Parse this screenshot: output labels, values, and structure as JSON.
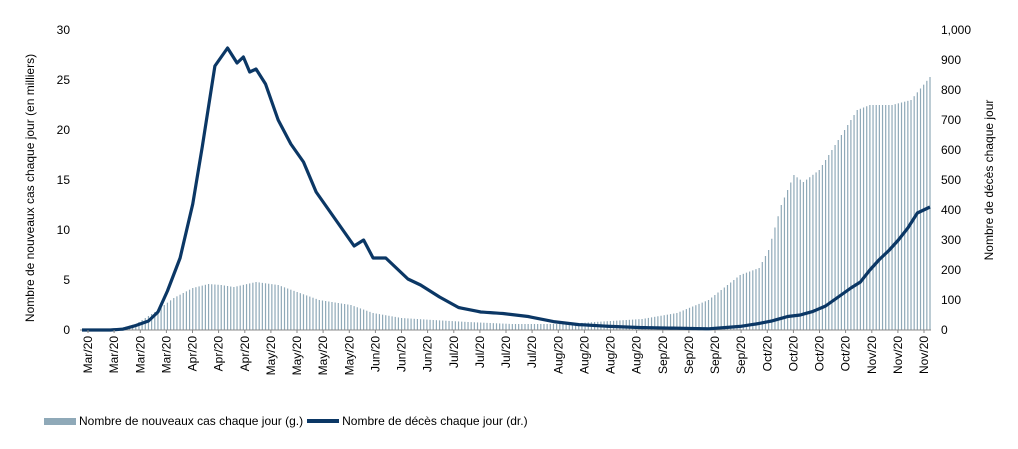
{
  "colors": {
    "bars": "#8fa9b8",
    "line": "#0b3765",
    "axis": "#888888"
  },
  "chart_data": {
    "type": "bar+line",
    "title": "",
    "ylabel_left": "Nombre de nouveaux cas chaque jour (en milliers)",
    "ylabel_right": "Nombre de décès chaque jour",
    "ylim_left": [
      0,
      30
    ],
    "ylim_right": [
      0,
      1000
    ],
    "yticks_left": [
      "0",
      "5",
      "10",
      "15",
      "20",
      "25",
      "30"
    ],
    "yticks_right": [
      "0",
      "100",
      "200",
      "300",
      "400",
      "500",
      "600",
      "700",
      "800",
      "900",
      "1,000"
    ],
    "x_tick_labels": [
      "Mar/20",
      "Mar/20",
      "Mar/20",
      "Mar/20",
      "Apr/20",
      "Apr/20",
      "Apr/20",
      "May/20",
      "May/20",
      "May/20",
      "May/20",
      "Jun/20",
      "Jun/20",
      "Jun/20",
      "Jul/20",
      "Jul/20",
      "Jul/20",
      "Jul/20",
      "Aug/20",
      "Aug/20",
      "Aug/20",
      "Aug/20",
      "Sep/20",
      "Sep/20",
      "Sep/20",
      "Sep/20",
      "Oct/20",
      "Oct/20",
      "Oct/20",
      "Oct/20",
      "Nov/20",
      "Nov/20",
      "Nov/20"
    ],
    "legend": [
      {
        "label": "Nombre de nouveaux cas chaque jour (g.)",
        "kind": "bar"
      },
      {
        "label": "Nombre de décès chaque jour (dr.)",
        "kind": "line"
      }
    ],
    "legend_position": "bottom-left",
    "x_start": "2020-03-01",
    "x_end": "2020-11-24",
    "series": [
      {
        "name": "Nombre de nouveaux cas chaque jour (g.)",
        "kind": "bar",
        "axis": "left",
        "knots": [
          [
            "2020-03-01",
            0
          ],
          [
            "2020-03-12",
            0.1
          ],
          [
            "2020-03-18",
            0.6
          ],
          [
            "2020-03-24",
            1.8
          ],
          [
            "2020-03-30",
            3.2
          ],
          [
            "2020-04-05",
            4.2
          ],
          [
            "2020-04-10",
            4.6
          ],
          [
            "2020-04-14",
            4.5
          ],
          [
            "2020-04-18",
            4.3
          ],
          [
            "2020-04-25",
            4.8
          ],
          [
            "2020-05-02",
            4.5
          ],
          [
            "2020-05-08",
            3.8
          ],
          [
            "2020-05-15",
            3.0
          ],
          [
            "2020-05-25",
            2.5
          ],
          [
            "2020-06-01",
            1.7
          ],
          [
            "2020-06-10",
            1.2
          ],
          [
            "2020-06-20",
            1.0
          ],
          [
            "2020-07-01",
            0.8
          ],
          [
            "2020-07-15",
            0.6
          ],
          [
            "2020-08-01",
            0.6
          ],
          [
            "2020-08-10",
            0.8
          ],
          [
            "2020-08-25",
            1.1
          ],
          [
            "2020-09-05",
            1.7
          ],
          [
            "2020-09-15",
            3.0
          ],
          [
            "2020-09-25",
            5.5
          ],
          [
            "2020-10-01",
            6.2
          ],
          [
            "2020-10-04",
            8.0
          ],
          [
            "2020-10-08",
            12.5
          ],
          [
            "2020-10-12",
            15.5
          ],
          [
            "2020-10-15",
            14.8
          ],
          [
            "2020-10-20",
            16.0
          ],
          [
            "2020-10-25",
            18.5
          ],
          [
            "2020-11-01",
            22.0
          ],
          [
            "2020-11-05",
            22.5
          ],
          [
            "2020-11-12",
            22.5
          ],
          [
            "2020-11-18",
            23.0
          ],
          [
            "2020-11-24",
            25.3
          ]
        ]
      },
      {
        "name": "Nombre de décès chaque jour (dr.)",
        "kind": "line",
        "axis": "right",
        "knots": [
          [
            "2020-03-01",
            0
          ],
          [
            "2020-03-10",
            0
          ],
          [
            "2020-03-14",
            3
          ],
          [
            "2020-03-18",
            15
          ],
          [
            "2020-03-22",
            30
          ],
          [
            "2020-03-25",
            60
          ],
          [
            "2020-03-28",
            130
          ],
          [
            "2020-04-01",
            240
          ],
          [
            "2020-04-05",
            420
          ],
          [
            "2020-04-08",
            610
          ],
          [
            "2020-04-12",
            880
          ],
          [
            "2020-04-16",
            940
          ],
          [
            "2020-04-19",
            890
          ],
          [
            "2020-04-21",
            910
          ],
          [
            "2020-04-23",
            860
          ],
          [
            "2020-04-25",
            870
          ],
          [
            "2020-04-28",
            820
          ],
          [
            "2020-05-02",
            700
          ],
          [
            "2020-05-06",
            620
          ],
          [
            "2020-05-10",
            560
          ],
          [
            "2020-05-14",
            460
          ],
          [
            "2020-05-18",
            400
          ],
          [
            "2020-05-22",
            340
          ],
          [
            "2020-05-26",
            280
          ],
          [
            "2020-05-29",
            300
          ],
          [
            "2020-06-01",
            240
          ],
          [
            "2020-06-05",
            240
          ],
          [
            "2020-06-08",
            210
          ],
          [
            "2020-06-12",
            170
          ],
          [
            "2020-06-16",
            150
          ],
          [
            "2020-06-22",
            110
          ],
          [
            "2020-06-28",
            75
          ],
          [
            "2020-07-05",
            60
          ],
          [
            "2020-07-12",
            55
          ],
          [
            "2020-07-20",
            45
          ],
          [
            "2020-07-28",
            28
          ],
          [
            "2020-08-05",
            18
          ],
          [
            "2020-08-15",
            12
          ],
          [
            "2020-08-25",
            8
          ],
          [
            "2020-09-05",
            6
          ],
          [
            "2020-09-15",
            4
          ],
          [
            "2020-09-20",
            8
          ],
          [
            "2020-09-25",
            12
          ],
          [
            "2020-09-30",
            20
          ],
          [
            "2020-10-05",
            30
          ],
          [
            "2020-10-10",
            45
          ],
          [
            "2020-10-14",
            50
          ],
          [
            "2020-10-18",
            62
          ],
          [
            "2020-10-22",
            80
          ],
          [
            "2020-10-26",
            110
          ],
          [
            "2020-10-30",
            140
          ],
          [
            "2020-11-02",
            160
          ],
          [
            "2020-11-05",
            200
          ],
          [
            "2020-11-08",
            235
          ],
          [
            "2020-11-11",
            265
          ],
          [
            "2020-11-14",
            300
          ],
          [
            "2020-11-17",
            340
          ],
          [
            "2020-11-20",
            390
          ],
          [
            "2020-11-24",
            410
          ]
        ]
      }
    ]
  }
}
